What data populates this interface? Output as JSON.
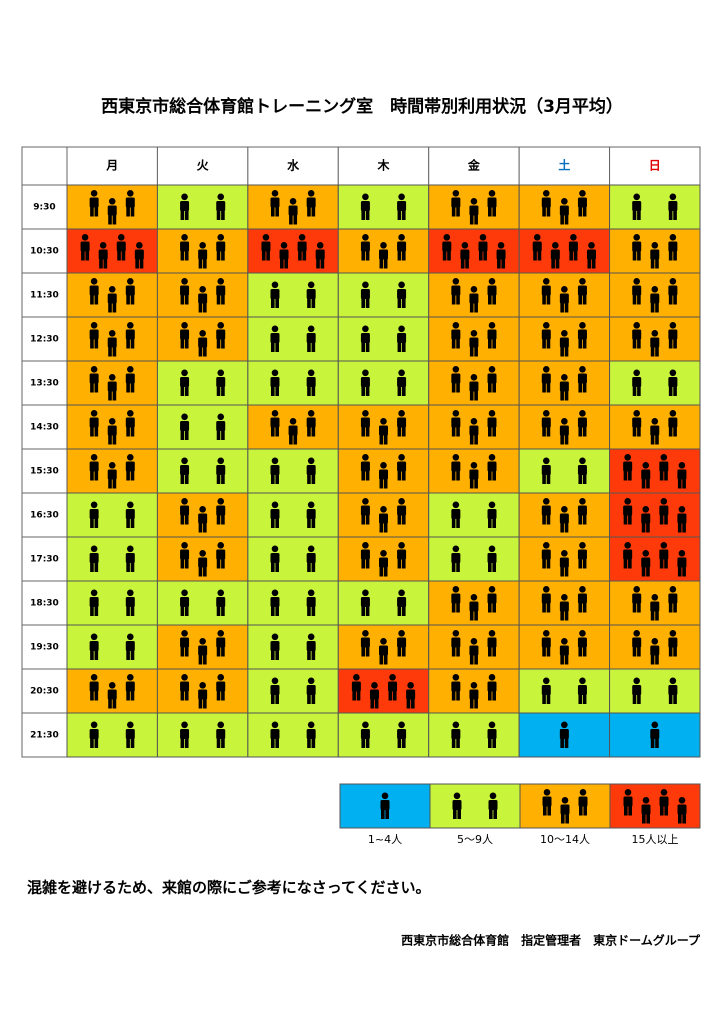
{
  "header": {
    "title": "西東京市総合体育館トレーニング室　時間帯別利用状況（3月平均）"
  },
  "table": {
    "days": [
      "月",
      "火",
      "水",
      "木",
      "金",
      "土",
      "日"
    ],
    "rows": [
      {
        "time": "9:30",
        "levels": [
          3,
          2,
          3,
          2,
          3,
          3,
          2
        ]
      },
      {
        "time": "10:30",
        "levels": [
          4,
          3,
          4,
          3,
          4,
          4,
          3
        ]
      },
      {
        "time": "11:30",
        "levels": [
          3,
          3,
          2,
          2,
          3,
          3,
          3
        ]
      },
      {
        "time": "12:30",
        "levels": [
          3,
          3,
          2,
          2,
          3,
          3,
          3
        ]
      },
      {
        "time": "13:30",
        "levels": [
          3,
          2,
          2,
          2,
          3,
          3,
          2
        ]
      },
      {
        "time": "14:30",
        "levels": [
          3,
          2,
          3,
          3,
          3,
          3,
          3
        ]
      },
      {
        "time": "15:30",
        "levels": [
          3,
          2,
          2,
          3,
          3,
          2,
          4
        ]
      },
      {
        "time": "16:30",
        "levels": [
          2,
          3,
          2,
          3,
          2,
          3,
          4
        ]
      },
      {
        "time": "17:30",
        "levels": [
          2,
          3,
          2,
          3,
          2,
          3,
          4
        ]
      },
      {
        "time": "18:30",
        "levels": [
          2,
          2,
          2,
          2,
          3,
          3,
          3
        ]
      },
      {
        "time": "19:30",
        "levels": [
          2,
          3,
          2,
          3,
          3,
          3,
          3
        ]
      },
      {
        "time": "20:30",
        "levels": [
          3,
          3,
          2,
          4,
          3,
          2,
          2
        ]
      },
      {
        "time": "21:30",
        "levels": [
          2,
          2,
          2,
          2,
          2,
          1,
          1
        ]
      }
    ]
  },
  "legend": [
    {
      "level": 1,
      "label": "1~4人",
      "color": "#00b0f0"
    },
    {
      "level": 2,
      "label": "5〜9人",
      "color": "#c8f43c"
    },
    {
      "level": 3,
      "label": "10〜14人",
      "color": "#ffb000"
    },
    {
      "level": 4,
      "label": "15人以上",
      "color": "#ff3a0a"
    }
  ],
  "note": "混雑を避けるため、来館の際にご参考になさってください。",
  "footer": "西東京市総合体育館　指定管理者　東京ドームグループ"
}
